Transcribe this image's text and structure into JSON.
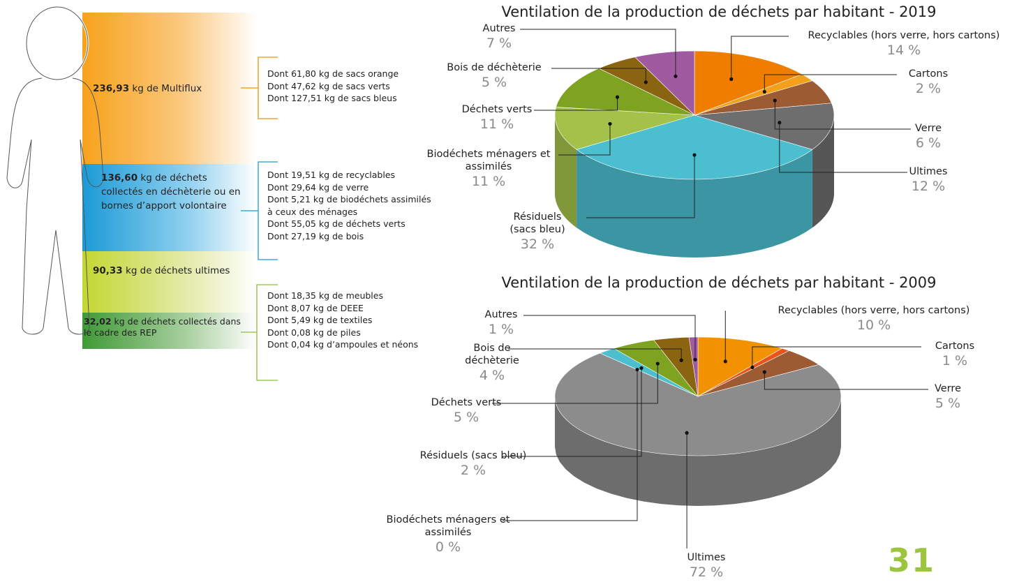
{
  "panel": {
    "blocks": [
      {
        "amount": "236,93",
        "text": "kg de Multiflux",
        "details": [
          "Dont 61,80 kg de sacs orange",
          "Dont 47,62 kg de sacs verts",
          "Dont 127,51 kg de sacs bleus"
        ]
      },
      {
        "amount": "136,60",
        "text": "kg de déchets collectés en déchèterie ou en bornes d’apport volontaire",
        "details": [
          "Dont 19,51 kg de recyclables",
          "Dont 29,64 kg de verre",
          "Dont 5,21 kg de biodéchets assimilés à ceux des ménages",
          "Dont 55,05 kg de déchets verts",
          "Dont 27,19 kg de bois"
        ]
      },
      {
        "amount": "90,33",
        "text": "kg de déchets ultimes"
      },
      {
        "amount": "32,02",
        "text": "kg de déchets collectés dans le cadre des REP",
        "details": [
          "Dont 18,35 kg de meubles",
          "Dont 8,07 kg de DEEE",
          "Dont 5,49 kg de textiles",
          "Dont 0,08 kg de piles",
          "Dont 0,04 kg d’ampoules et néons"
        ]
      }
    ]
  },
  "chart_data": [
    {
      "type": "pie",
      "title": "Ventilation de la production de déchets par habitant - 2019",
      "categories": [
        "Recyclables (hors verre, hors cartons)",
        "Cartons",
        "Verre",
        "Ultimes",
        "Résiduels (sacs bleu)",
        "Biodéchets ménagers et assimilés",
        "Déchets verts",
        "Bois de déchèterie",
        "Autres"
      ],
      "values": [
        14,
        2,
        6,
        12,
        32,
        11,
        11,
        5,
        7
      ],
      "value_labels": [
        "14 %",
        "2 %",
        "6 %",
        "12 %",
        "32 %",
        "11 %",
        "11 %",
        "5 %",
        "7 %"
      ],
      "colors": [
        "#ef7d00",
        "#f5a01a",
        "#9c5b32",
        "#6e6e6e",
        "#4bbfd0",
        "#a4c24a",
        "#7ea321",
        "#8a6410",
        "#a05ba0"
      ]
    },
    {
      "type": "pie",
      "title": "Ventilation de la production de déchets par habitant - 2009",
      "categories": [
        "Recyclables (hors verre, hors cartons)",
        "Cartons",
        "Verre",
        "Ultimes",
        "Biodéchets ménagers et assimilés",
        "Résiduels (sacs bleu)",
        "Déchets verts",
        "Bois de déchèterie",
        "Autres"
      ],
      "values": [
        10,
        1,
        5,
        72,
        0,
        2,
        5,
        4,
        1
      ],
      "value_labels": [
        "10 %",
        "1 %",
        "5 %",
        "72 %",
        "0 %",
        "2 %",
        "5 %",
        "4 %",
        "1 %"
      ],
      "colors": [
        "#f39200",
        "#e8541c",
        "#9c5b32",
        "#8c8c8c",
        "#b5c95a",
        "#4bbfd0",
        "#7ea321",
        "#8a6410",
        "#a05ba0"
      ]
    }
  ],
  "page_number": "31"
}
